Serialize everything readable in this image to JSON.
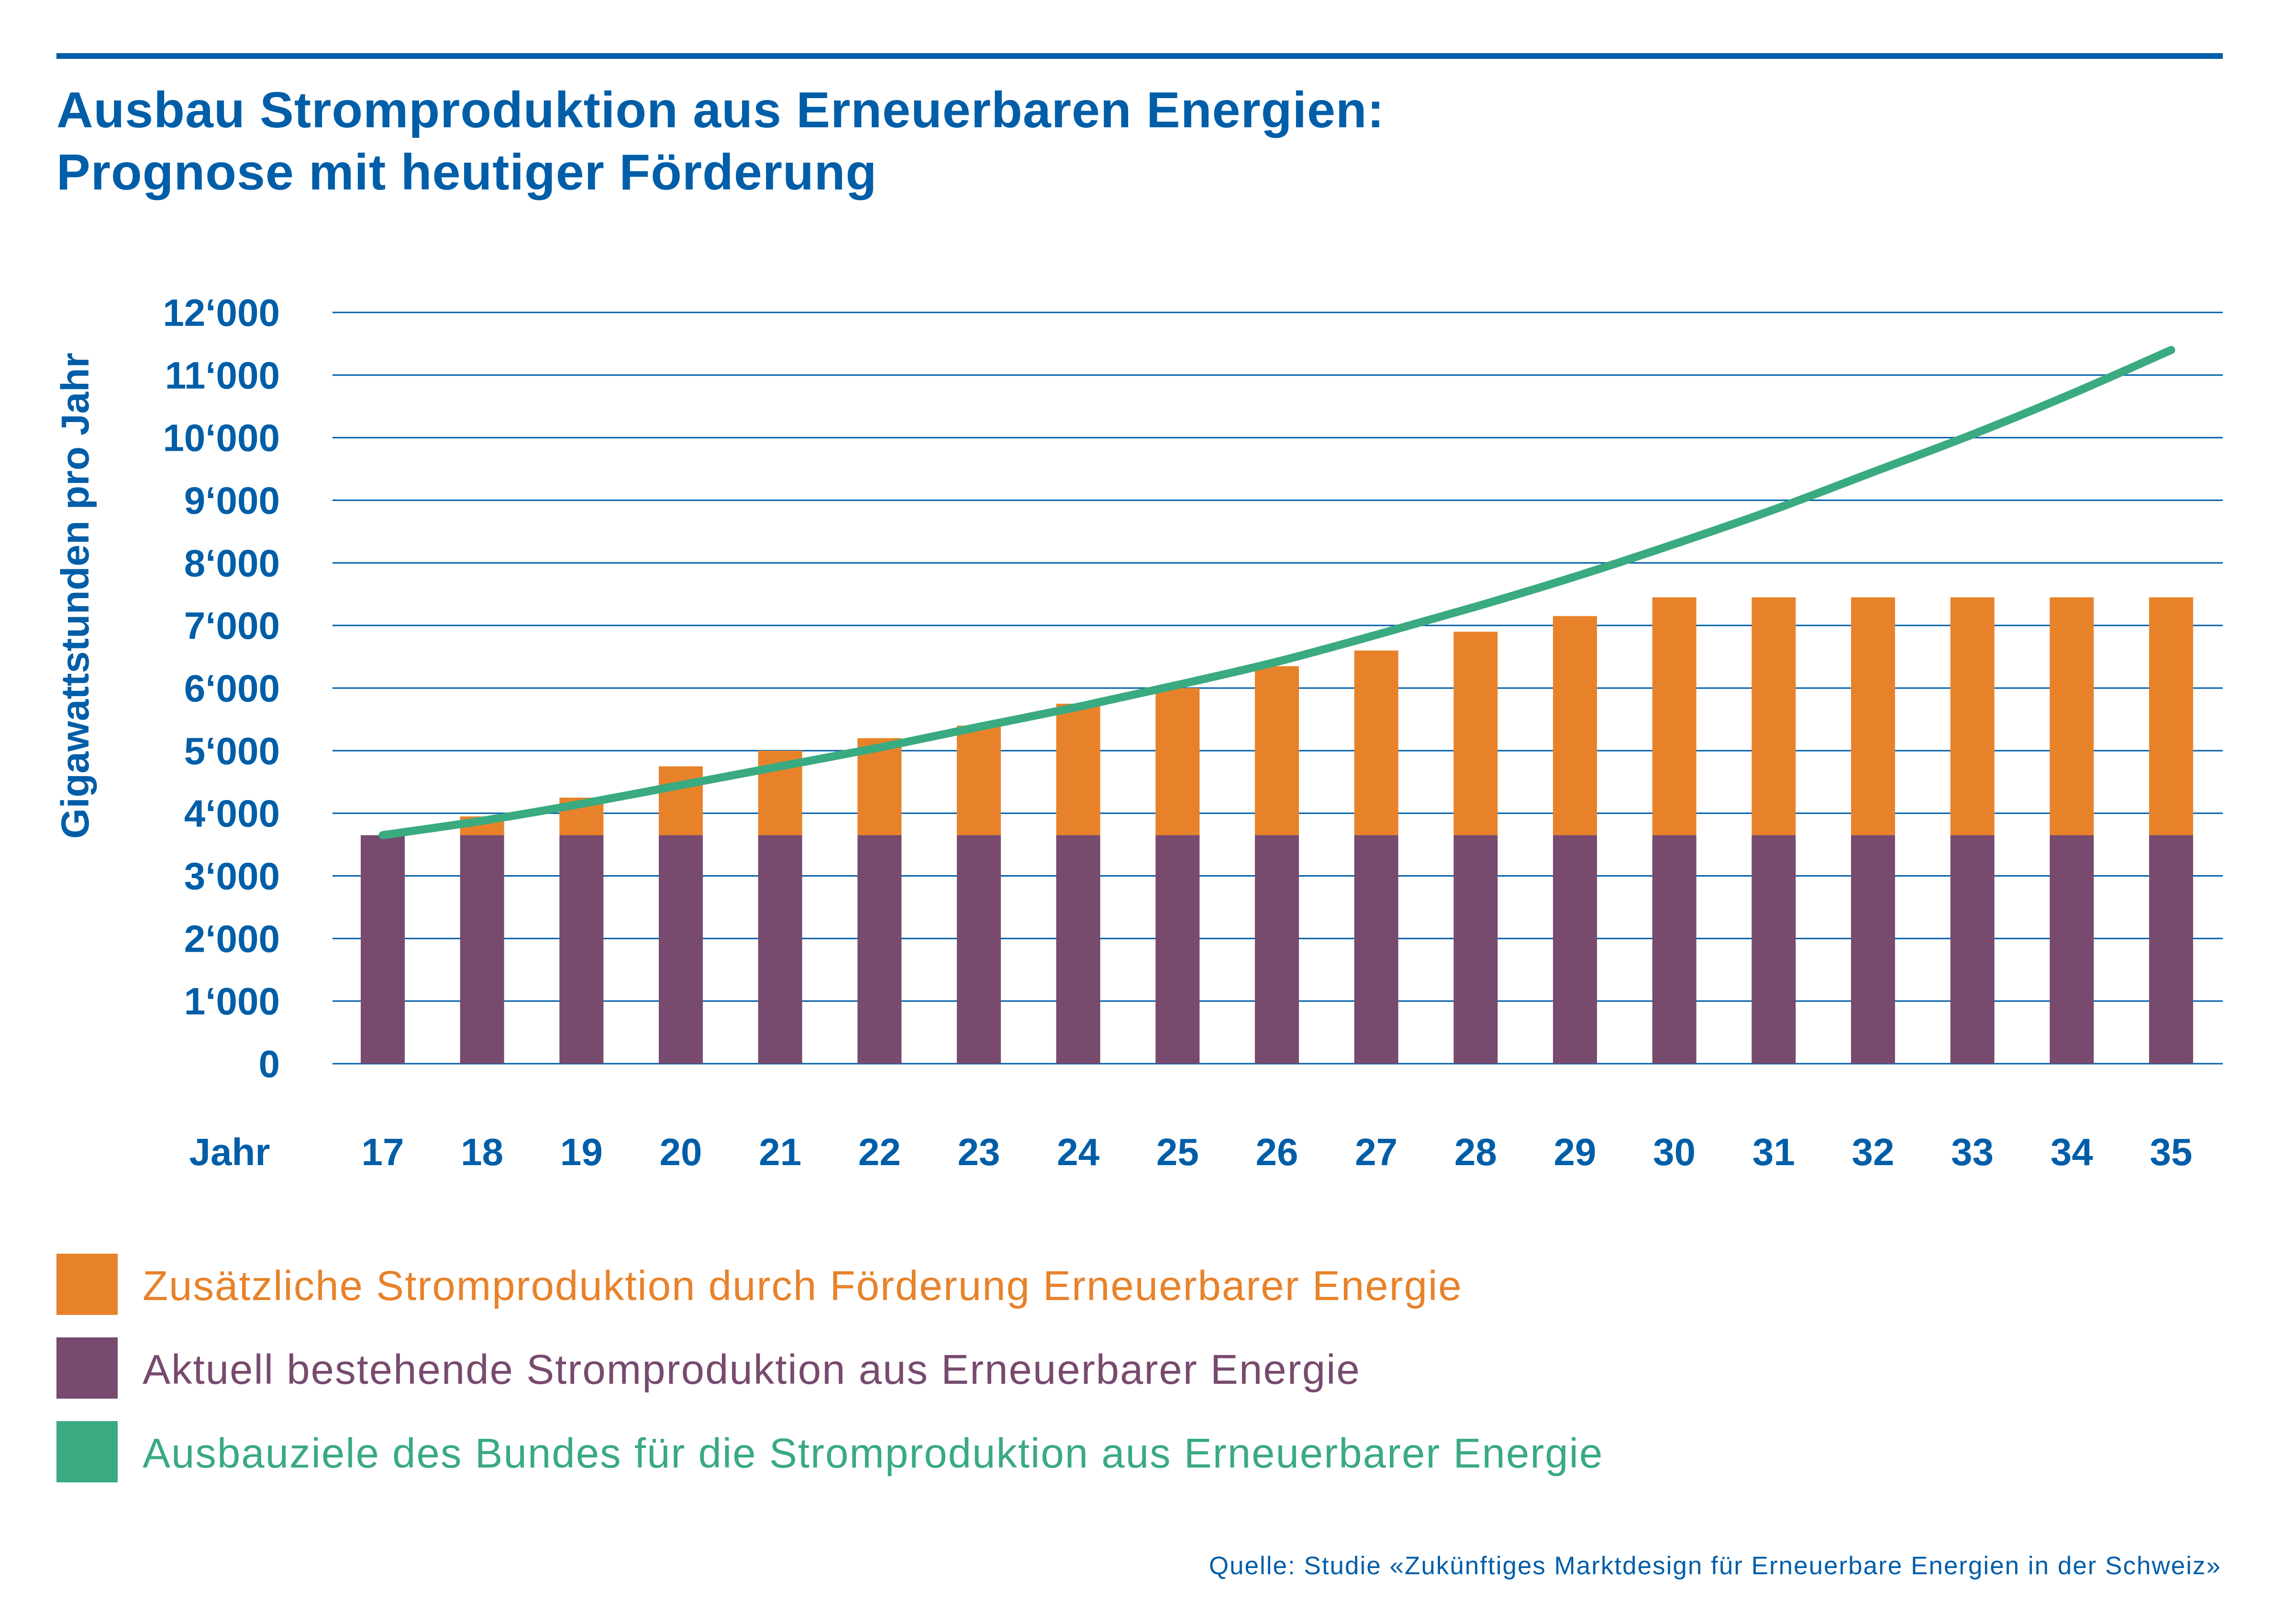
{
  "title": {
    "line1": "Ausbau Stromproduktion aus Erneuerbaren Energien:",
    "line2": "Prognose mit heutiger Förderung"
  },
  "colors": {
    "brand": "#005ea8",
    "additional": "#e8822a",
    "existing": "#774a6e",
    "target": "#3aaa80"
  },
  "chart_data": {
    "type": "bar",
    "stacked": true,
    "ylabel": "Gigawattstunden pro Jahr",
    "xlabel": "Jahr",
    "ylim": [
      0,
      12000
    ],
    "yticks": [
      0,
      1000,
      2000,
      3000,
      4000,
      5000,
      6000,
      7000,
      8000,
      9000,
      10000,
      11000,
      12000
    ],
    "ytick_labels": [
      "0",
      "1‘000",
      "2‘000",
      "3‘000",
      "4‘000",
      "5‘000",
      "6‘000",
      "7‘000",
      "8‘000",
      "9‘000",
      "10‘000",
      "11‘000",
      "12‘000"
    ],
    "grid": true,
    "categories": [
      "17",
      "18",
      "19",
      "20",
      "21",
      "22",
      "23",
      "24",
      "25",
      "26",
      "27",
      "28",
      "29",
      "30",
      "31",
      "32",
      "33",
      "34",
      "35"
    ],
    "series": [
      {
        "name": "Aktuell bestehende Stromproduktion aus Erneuerbarer Energie",
        "kind": "bar",
        "color": "#774a6e",
        "values": [
          3650,
          3650,
          3650,
          3650,
          3650,
          3650,
          3650,
          3650,
          3650,
          3650,
          3650,
          3650,
          3650,
          3650,
          3650,
          3650,
          3650,
          3650,
          3650
        ]
      },
      {
        "name": "Zusätzliche Stromproduktion durch Förderung Erneuerbarer Energie",
        "kind": "bar",
        "color": "#e8822a",
        "values": [
          0,
          300,
          600,
          1100,
          1350,
          1550,
          1750,
          2100,
          2350,
          2700,
          2950,
          3250,
          3500,
          3800,
          3800,
          3800,
          3800,
          3800,
          3800
        ]
      },
      {
        "name": "Ausbauziele des Bundes für die Stromproduktion aus Erneuerbarer Energie",
        "kind": "line",
        "color": "#3aaa80",
        "values": [
          3650,
          3880,
          4150,
          4450,
          4750,
          5050,
          5380,
          5700,
          6050,
          6420,
          6850,
          7300,
          7780,
          8300,
          8850,
          9450,
          10050,
          10700,
          11400
        ]
      }
    ]
  },
  "legend": [
    {
      "label": "Zusätzliche Stromproduktion durch Förderung Erneuerbarer Energie",
      "color": "#e8822a"
    },
    {
      "label": "Aktuell bestehende Stromproduktion aus Erneuerbarer Energie",
      "color": "#774a6e"
    },
    {
      "label": "Ausbauziele des Bundes für die Stromproduktion aus Erneuerbarer Energie",
      "color": "#3aaa80"
    }
  ],
  "source": "Quelle: Studie «Zukünftiges Marktdesign für Erneuerbare Energien in der Schweiz»"
}
